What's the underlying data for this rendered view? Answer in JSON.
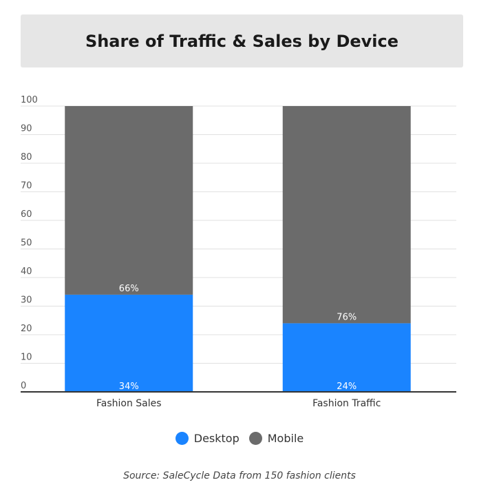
{
  "colors": {
    "desktop": "#1a84ff",
    "mobile": "#6b6b6b"
  },
  "chart_data": {
    "type": "bar",
    "stacked": true,
    "title": "Share of Traffic & Sales by Device",
    "categories": [
      "Fashion Sales",
      "Fashion Traffic"
    ],
    "series": [
      {
        "name": "Desktop",
        "values": [
          34,
          24
        ],
        "labels": [
          "34%",
          "24%"
        ]
      },
      {
        "name": "Mobile",
        "values": [
          66,
          76
        ],
        "labels": [
          "66%",
          "76%"
        ]
      }
    ],
    "yticks": [
      "0",
      "10",
      "20",
      "30",
      "40",
      "50",
      "60",
      "70",
      "80",
      "90",
      "100"
    ],
    "ylim": [
      0,
      100
    ],
    "grid": true,
    "legend_position": "bottom"
  },
  "source": "Source: SaleCycle Data from 150 fashion clients"
}
